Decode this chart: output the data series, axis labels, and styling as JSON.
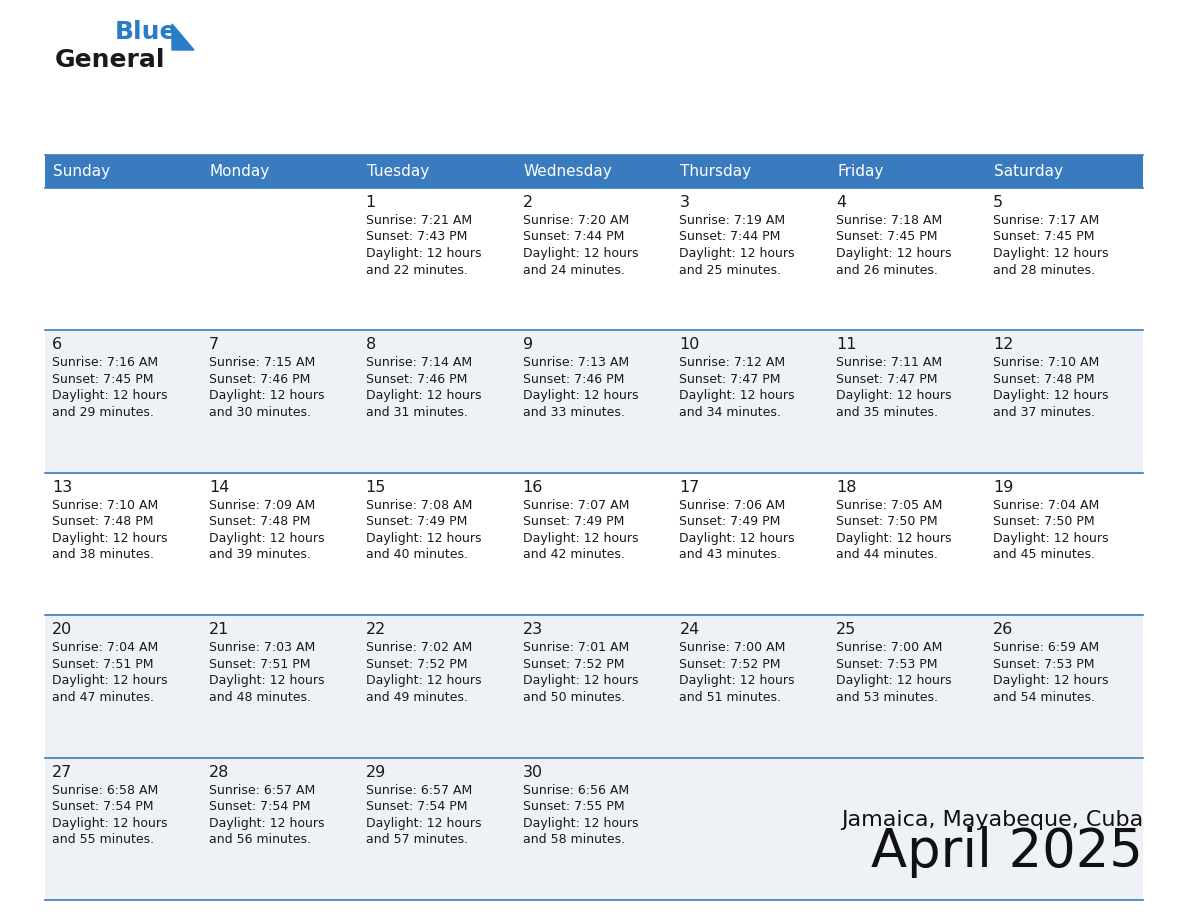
{
  "title": "April 2025",
  "subtitle": "Jamaica, Mayabeque, Cuba",
  "header_bg": "#3a7bbf",
  "header_text_color": "#ffffff",
  "border_color": "#3a7bbf",
  "text_color": "#1a1a1a",
  "row_bg_colors": [
    "#ffffff",
    "#eef2f7",
    "#ffffff",
    "#eef2f7",
    "#eef2f7"
  ],
  "day_names": [
    "Sunday",
    "Monday",
    "Tuesday",
    "Wednesday",
    "Thursday",
    "Friday",
    "Saturday"
  ],
  "weeks": [
    [
      {
        "day": "",
        "lines": []
      },
      {
        "day": "",
        "lines": []
      },
      {
        "day": "1",
        "lines": [
          "Sunrise: 7:21 AM",
          "Sunset: 7:43 PM",
          "Daylight: 12 hours",
          "and 22 minutes."
        ]
      },
      {
        "day": "2",
        "lines": [
          "Sunrise: 7:20 AM",
          "Sunset: 7:44 PM",
          "Daylight: 12 hours",
          "and 24 minutes."
        ]
      },
      {
        "day": "3",
        "lines": [
          "Sunrise: 7:19 AM",
          "Sunset: 7:44 PM",
          "Daylight: 12 hours",
          "and 25 minutes."
        ]
      },
      {
        "day": "4",
        "lines": [
          "Sunrise: 7:18 AM",
          "Sunset: 7:45 PM",
          "Daylight: 12 hours",
          "and 26 minutes."
        ]
      },
      {
        "day": "5",
        "lines": [
          "Sunrise: 7:17 AM",
          "Sunset: 7:45 PM",
          "Daylight: 12 hours",
          "and 28 minutes."
        ]
      }
    ],
    [
      {
        "day": "6",
        "lines": [
          "Sunrise: 7:16 AM",
          "Sunset: 7:45 PM",
          "Daylight: 12 hours",
          "and 29 minutes."
        ]
      },
      {
        "day": "7",
        "lines": [
          "Sunrise: 7:15 AM",
          "Sunset: 7:46 PM",
          "Daylight: 12 hours",
          "and 30 minutes."
        ]
      },
      {
        "day": "8",
        "lines": [
          "Sunrise: 7:14 AM",
          "Sunset: 7:46 PM",
          "Daylight: 12 hours",
          "and 31 minutes."
        ]
      },
      {
        "day": "9",
        "lines": [
          "Sunrise: 7:13 AM",
          "Sunset: 7:46 PM",
          "Daylight: 12 hours",
          "and 33 minutes."
        ]
      },
      {
        "day": "10",
        "lines": [
          "Sunrise: 7:12 AM",
          "Sunset: 7:47 PM",
          "Daylight: 12 hours",
          "and 34 minutes."
        ]
      },
      {
        "day": "11",
        "lines": [
          "Sunrise: 7:11 AM",
          "Sunset: 7:47 PM",
          "Daylight: 12 hours",
          "and 35 minutes."
        ]
      },
      {
        "day": "12",
        "lines": [
          "Sunrise: 7:10 AM",
          "Sunset: 7:48 PM",
          "Daylight: 12 hours",
          "and 37 minutes."
        ]
      }
    ],
    [
      {
        "day": "13",
        "lines": [
          "Sunrise: 7:10 AM",
          "Sunset: 7:48 PM",
          "Daylight: 12 hours",
          "and 38 minutes."
        ]
      },
      {
        "day": "14",
        "lines": [
          "Sunrise: 7:09 AM",
          "Sunset: 7:48 PM",
          "Daylight: 12 hours",
          "and 39 minutes."
        ]
      },
      {
        "day": "15",
        "lines": [
          "Sunrise: 7:08 AM",
          "Sunset: 7:49 PM",
          "Daylight: 12 hours",
          "and 40 minutes."
        ]
      },
      {
        "day": "16",
        "lines": [
          "Sunrise: 7:07 AM",
          "Sunset: 7:49 PM",
          "Daylight: 12 hours",
          "and 42 minutes."
        ]
      },
      {
        "day": "17",
        "lines": [
          "Sunrise: 7:06 AM",
          "Sunset: 7:49 PM",
          "Daylight: 12 hours",
          "and 43 minutes."
        ]
      },
      {
        "day": "18",
        "lines": [
          "Sunrise: 7:05 AM",
          "Sunset: 7:50 PM",
          "Daylight: 12 hours",
          "and 44 minutes."
        ]
      },
      {
        "day": "19",
        "lines": [
          "Sunrise: 7:04 AM",
          "Sunset: 7:50 PM",
          "Daylight: 12 hours",
          "and 45 minutes."
        ]
      }
    ],
    [
      {
        "day": "20",
        "lines": [
          "Sunrise: 7:04 AM",
          "Sunset: 7:51 PM",
          "Daylight: 12 hours",
          "and 47 minutes."
        ]
      },
      {
        "day": "21",
        "lines": [
          "Sunrise: 7:03 AM",
          "Sunset: 7:51 PM",
          "Daylight: 12 hours",
          "and 48 minutes."
        ]
      },
      {
        "day": "22",
        "lines": [
          "Sunrise: 7:02 AM",
          "Sunset: 7:52 PM",
          "Daylight: 12 hours",
          "and 49 minutes."
        ]
      },
      {
        "day": "23",
        "lines": [
          "Sunrise: 7:01 AM",
          "Sunset: 7:52 PM",
          "Daylight: 12 hours",
          "and 50 minutes."
        ]
      },
      {
        "day": "24",
        "lines": [
          "Sunrise: 7:00 AM",
          "Sunset: 7:52 PM",
          "Daylight: 12 hours",
          "and 51 minutes."
        ]
      },
      {
        "day": "25",
        "lines": [
          "Sunrise: 7:00 AM",
          "Sunset: 7:53 PM",
          "Daylight: 12 hours",
          "and 53 minutes."
        ]
      },
      {
        "day": "26",
        "lines": [
          "Sunrise: 6:59 AM",
          "Sunset: 7:53 PM",
          "Daylight: 12 hours",
          "and 54 minutes."
        ]
      }
    ],
    [
      {
        "day": "27",
        "lines": [
          "Sunrise: 6:58 AM",
          "Sunset: 7:54 PM",
          "Daylight: 12 hours",
          "and 55 minutes."
        ]
      },
      {
        "day": "28",
        "lines": [
          "Sunrise: 6:57 AM",
          "Sunset: 7:54 PM",
          "Daylight: 12 hours",
          "and 56 minutes."
        ]
      },
      {
        "day": "29",
        "lines": [
          "Sunrise: 6:57 AM",
          "Sunset: 7:54 PM",
          "Daylight: 12 hours",
          "and 57 minutes."
        ]
      },
      {
        "day": "30",
        "lines": [
          "Sunrise: 6:56 AM",
          "Sunset: 7:55 PM",
          "Daylight: 12 hours",
          "and 58 minutes."
        ]
      },
      {
        "day": "",
        "lines": []
      },
      {
        "day": "",
        "lines": []
      },
      {
        "day": "",
        "lines": []
      }
    ]
  ],
  "logo_general_color": "#1a1a1a",
  "logo_blue_color": "#2a7cc7",
  "logo_triangle_color": "#2a7cc7"
}
